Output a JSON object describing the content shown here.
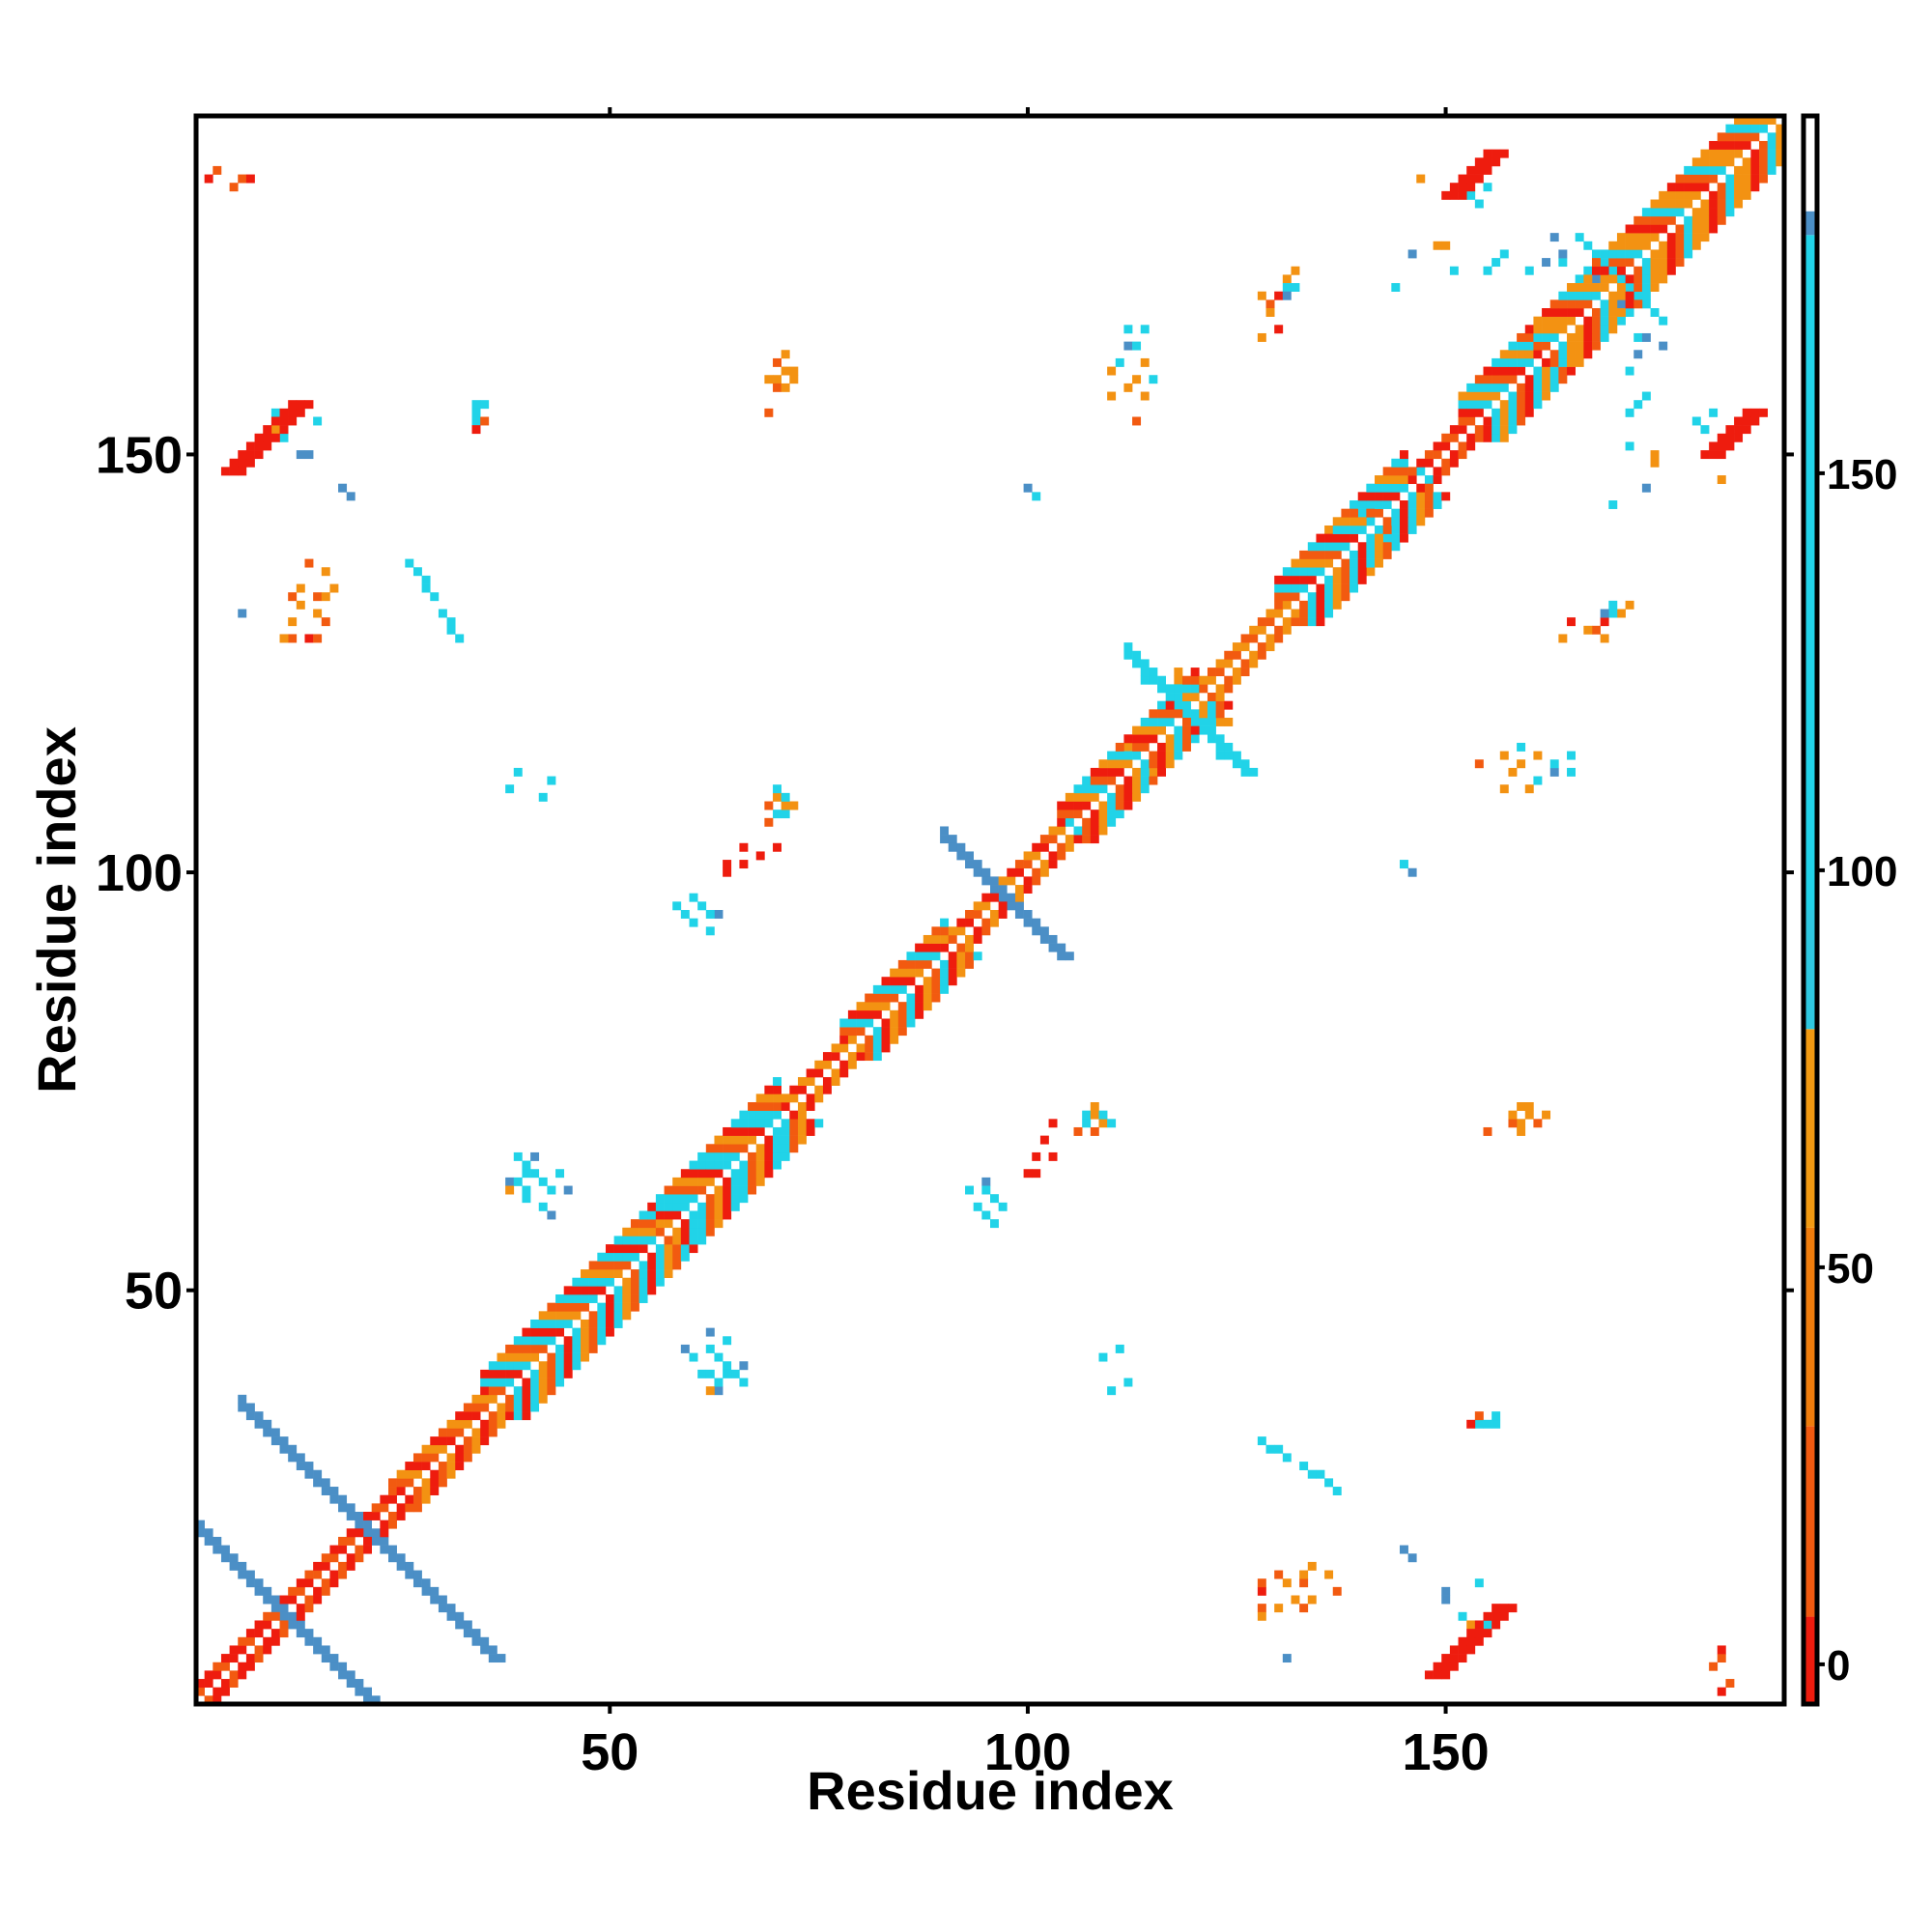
{
  "chart_data": {
    "type": "heatmap",
    "title": "",
    "xlabel": "Residue index",
    "ylabel": "Residue index",
    "xlim": [
      1,
      190
    ],
    "ylim": [
      1,
      190
    ],
    "x_ticks": [
      50,
      100,
      150
    ],
    "y_ticks": [
      50,
      100,
      150
    ],
    "grid": false,
    "colorbar": {
      "position": "right",
      "ticks": [
        0,
        50,
        100,
        150
      ],
      "range": [
        -5,
        195
      ],
      "bands": [
        {
          "from": -5,
          "to": 6,
          "color": "#ee1c0e"
        },
        {
          "from": 6,
          "to": 30,
          "color": "#f25a10"
        },
        {
          "from": 30,
          "to": 55,
          "color": "#f07d0c"
        },
        {
          "from": 55,
          "to": 80,
          "color": "#f29a12"
        },
        {
          "from": 80,
          "to": 95,
          "color": "#2fc8e0"
        },
        {
          "from": 95,
          "to": 180,
          "color": "#21d3e8"
        },
        {
          "from": 180,
          "to": 183,
          "color": "#4b8fc6"
        },
        {
          "from": 183,
          "to": 195,
          "color": "#ffffff"
        }
      ]
    },
    "palette": {
      "red": "#ee1c0e",
      "orange_red": "#f25a10",
      "orange": "#f39212",
      "cyan": "#21d3e8",
      "steel_blue": "#4b8fc6"
    },
    "diagonal_bands": [
      {
        "from": 1,
        "to": 12,
        "width": 2,
        "colors": [
          "red",
          "orange_red",
          "red"
        ]
      },
      {
        "from": 12,
        "to": 24,
        "width": 2,
        "colors": [
          "red",
          "orange_red"
        ]
      },
      {
        "from": 24,
        "to": 35,
        "width": 3,
        "colors": [
          "orange",
          "red",
          "orange_red"
        ]
      },
      {
        "from": 35,
        "to": 55,
        "width": 5,
        "colors": [
          "cyan",
          "orange",
          "orange_red",
          "cyan",
          "red"
        ]
      },
      {
        "from": 55,
        "to": 70,
        "width": 5,
        "colors": [
          "cyan",
          "orange_red",
          "orange",
          "red",
          "cyan"
        ]
      },
      {
        "from": 70,
        "to": 78,
        "width": 2,
        "colors": [
          "orange",
          "red"
        ]
      },
      {
        "from": 78,
        "to": 90,
        "width": 4,
        "colors": [
          "orange_red",
          "cyan",
          "red",
          "orange"
        ]
      },
      {
        "from": 90,
        "to": 104,
        "width": 2,
        "colors": [
          "red",
          "orange_red",
          "orange"
        ]
      },
      {
        "from": 104,
        "to": 120,
        "width": 4,
        "colors": [
          "orange",
          "cyan",
          "orange_red",
          "red"
        ]
      },
      {
        "from": 120,
        "to": 130,
        "width": 2,
        "colors": [
          "orange",
          "orange_red"
        ]
      },
      {
        "from": 130,
        "to": 145,
        "width": 5,
        "colors": [
          "cyan",
          "orange",
          "orange_red",
          "cyan",
          "red"
        ]
      },
      {
        "from": 145,
        "to": 152,
        "width": 2,
        "colors": [
          "red",
          "orange_red"
        ]
      },
      {
        "from": 152,
        "to": 160,
        "width": 5,
        "colors": [
          "cyan",
          "orange",
          "cyan",
          "orange_red",
          "red"
        ]
      },
      {
        "from": 160,
        "to": 190,
        "width": 5,
        "colors": [
          "orange",
          "red",
          "orange_red",
          "cyan",
          "orange"
        ]
      }
    ],
    "antidiagonal_strands": [
      {
        "center": [
          11,
          11
        ],
        "half_length": 10,
        "width": 2,
        "color": "steel_blue"
      },
      {
        "center": [
          21,
          21
        ],
        "half_length": 15,
        "width": 2,
        "color": "steel_blue"
      },
      {
        "center": [
          97,
          97
        ],
        "half_length": 7,
        "width": 2,
        "color": "steel_blue"
      },
      {
        "center": [
          119,
          119
        ],
        "half_length": 7,
        "width": 2,
        "color": "cyan"
      },
      {
        "center": [
          171,
          171
        ],
        "half_length": 5,
        "width": 1,
        "color": "cyan"
      }
    ],
    "parallel_strands": [
      {
        "x0": 4,
        "y0": 148,
        "length": 9,
        "width": 3,
        "color": "red"
      },
      {
        "x0": 148,
        "y0": 4,
        "length": 9,
        "width": 3,
        "color": "red"
      },
      {
        "x0": 150,
        "y0": 181,
        "length": 6,
        "width": 3,
        "color": "red"
      },
      {
        "x0": 181,
        "y0": 150,
        "length": 6,
        "width": 3,
        "color": "red"
      }
    ],
    "contacts": [
      [
        5,
        182,
        "orange_red"
      ],
      [
        6,
        183,
        "orange_red"
      ],
      [
        7,
        183,
        "red"
      ],
      [
        15,
        133,
        "orange_red"
      ],
      [
        16,
        133,
        "orange"
      ],
      [
        17,
        134,
        "orange"
      ],
      [
        15,
        131,
        "orange"
      ],
      [
        16,
        130,
        "orange_red"
      ],
      [
        14,
        128,
        "red"
      ],
      [
        15,
        128,
        "orange_red"
      ],
      [
        16,
        136,
        "orange"
      ],
      [
        6,
        131,
        "steel_blue"
      ],
      [
        26,
        137,
        "cyan"
      ],
      [
        27,
        136,
        "cyan"
      ],
      [
        28,
        134,
        "cyan"
      ],
      [
        29,
        133,
        "cyan"
      ],
      [
        30,
        131,
        "cyan"
      ],
      [
        31,
        130,
        "cyan"
      ],
      [
        32,
        128,
        "cyan"
      ],
      [
        19,
        145,
        "steel_blue"
      ],
      [
        18,
        146,
        "steel_blue"
      ],
      [
        15,
        154,
        "cyan"
      ],
      [
        13,
        150,
        "steel_blue"
      ],
      [
        34,
        156,
        "cyan"
      ],
      [
        34,
        154,
        "cyan"
      ],
      [
        34,
        153,
        "red"
      ],
      [
        70,
        159,
        "orange"
      ],
      [
        70,
        158,
        "orange_red"
      ],
      [
        71,
        158,
        "orange"
      ],
      [
        72,
        159,
        "orange"
      ],
      [
        72,
        160,
        "orange"
      ],
      [
        69,
        155,
        "orange_red"
      ],
      [
        38,
        110,
        "cyan"
      ],
      [
        42,
        109,
        "cyan"
      ],
      [
        70,
        107,
        "cyan"
      ],
      [
        71,
        107,
        "cyan"
      ],
      [
        72,
        108,
        "orange"
      ],
      [
        70,
        109,
        "orange"
      ],
      [
        69,
        106,
        "orange_red"
      ],
      [
        66,
        103,
        "red"
      ],
      [
        66,
        101,
        "red"
      ],
      [
        70,
        103,
        "red"
      ],
      [
        58,
        96,
        "cyan"
      ],
      [
        59,
        95,
        "cyan"
      ],
      [
        60,
        94,
        "cyan"
      ],
      [
        62,
        93,
        "cyan"
      ],
      [
        63,
        95,
        "steel_blue"
      ],
      [
        39,
        66,
        "cyan"
      ],
      [
        40,
        65,
        "cyan"
      ],
      [
        41,
        64,
        "cyan"
      ],
      [
        42,
        63,
        "cyan"
      ],
      [
        43,
        62,
        "cyan"
      ],
      [
        41,
        66,
        "steel_blue"
      ],
      [
        38,
        63,
        "steel_blue"
      ],
      [
        45,
        62,
        "steel_blue"
      ],
      [
        59,
        43,
        "steel_blue"
      ],
      [
        60,
        42,
        "cyan"
      ],
      [
        62,
        43,
        "cyan"
      ],
      [
        63,
        42,
        "steel_blue"
      ],
      [
        64,
        44,
        "cyan"
      ],
      [
        61,
        40,
        "cyan"
      ],
      [
        62,
        40,
        "cyan"
      ],
      [
        64,
        40,
        "cyan"
      ],
      [
        62,
        38,
        "orange"
      ],
      [
        63,
        39,
        "cyan"
      ],
      [
        95,
        63,
        "steel_blue"
      ],
      [
        95,
        62,
        "cyan"
      ],
      [
        96,
        61,
        "cyan"
      ],
      [
        97,
        60,
        "cyan"
      ],
      [
        96,
        58,
        "cyan"
      ],
      [
        102,
        68,
        "red"
      ],
      [
        100,
        64,
        "red"
      ],
      [
        101,
        64,
        "red"
      ],
      [
        108,
        71,
        "orange"
      ],
      [
        109,
        71,
        "cyan"
      ],
      [
        110,
        70,
        "cyan"
      ],
      [
        108,
        69,
        "orange_red"
      ],
      [
        111,
        43,
        "cyan"
      ],
      [
        112,
        39,
        "cyan"
      ],
      [
        113,
        159,
        "orange"
      ],
      [
        114,
        157,
        "orange"
      ],
      [
        115,
        159,
        "cyan"
      ],
      [
        114,
        161,
        "orange"
      ],
      [
        113,
        154,
        "orange_red"
      ],
      [
        128,
        169,
        "orange"
      ],
      [
        129,
        168,
        "orange_red"
      ],
      [
        130,
        169,
        "red"
      ],
      [
        131,
        171,
        "orange"
      ],
      [
        132,
        170,
        "cyan"
      ],
      [
        128,
        164,
        "orange"
      ],
      [
        129,
        31,
        "cyan"
      ],
      [
        131,
        30,
        "cyan"
      ],
      [
        133,
        29,
        "cyan"
      ],
      [
        134,
        28,
        "steel_blue"
      ],
      [
        136,
        27,
        "steel_blue"
      ],
      [
        135,
        28,
        "cyan"
      ],
      [
        128,
        12,
        "orange_red"
      ],
      [
        130,
        12,
        "orange"
      ],
      [
        132,
        13,
        "orange"
      ],
      [
        133,
        12,
        "orange_red"
      ],
      [
        134,
        13,
        "orange"
      ],
      [
        137,
        14,
        "orange_red"
      ],
      [
        128,
        11,
        "orange"
      ],
      [
        131,
        6,
        "cyan"
      ],
      [
        146,
        18,
        "steel_blue"
      ],
      [
        150,
        14,
        "steel_blue"
      ],
      [
        152,
        11,
        "cyan"
      ],
      [
        153,
        10,
        "orange"
      ],
      [
        155,
        10,
        "cyan"
      ],
      [
        154,
        35,
        "orange_red"
      ],
      [
        155,
        34,
        "cyan"
      ],
      [
        156,
        35,
        "cyan"
      ],
      [
        160,
        71,
        "orange"
      ],
      [
        161,
        70,
        "orange_red"
      ],
      [
        159,
        69,
        "orange"
      ],
      [
        158,
        70,
        "orange_red"
      ],
      [
        162,
        71,
        "orange"
      ],
      [
        158,
        112,
        "orange"
      ],
      [
        160,
        110,
        "orange"
      ],
      [
        161,
        111,
        "cyan"
      ],
      [
        163,
        112,
        "steel_blue"
      ],
      [
        163,
        113,
        "cyan"
      ],
      [
        165,
        112,
        "cyan"
      ],
      [
        165,
        114,
        "cyan"
      ],
      [
        157,
        110,
        "orange"
      ],
      [
        165,
        130,
        "red"
      ],
      [
        167,
        129,
        "orange"
      ],
      [
        169,
        130,
        "steel_blue"
      ],
      [
        170,
        131,
        "cyan"
      ],
      [
        172,
        132,
        "orange"
      ],
      [
        169,
        131,
        "steel_blue"
      ],
      [
        160,
        172,
        "cyan"
      ],
      [
        162,
        173,
        "steel_blue"
      ],
      [
        164,
        173,
        "cyan"
      ],
      [
        166,
        171,
        "cyan"
      ],
      [
        171,
        168,
        "steel_blue"
      ],
      [
        172,
        167,
        "cyan"
      ],
      [
        174,
        164,
        "steel_blue"
      ],
      [
        176,
        163,
        "steel_blue"
      ],
      [
        155,
        172,
        "cyan"
      ],
      [
        156,
        173,
        "cyan"
      ],
      [
        157,
        174,
        "cyan"
      ],
      [
        146,
        174,
        "steel_blue"
      ],
      [
        150,
        175,
        "orange"
      ],
      [
        139,
        144,
        "cyan"
      ],
      [
        140,
        143,
        "cyan"
      ],
      [
        141,
        142,
        "cyan"
      ],
      [
        143,
        140,
        "cyan"
      ],
      [
        144,
        141,
        "cyan"
      ],
      [
        136,
        141,
        "orange"
      ],
      [
        145,
        101,
        "cyan"
      ],
      [
        146,
        100,
        "steel_blue"
      ],
      [
        148,
        147,
        "cyan"
      ],
      [
        170,
        144,
        "cyan"
      ],
      [
        175,
        149,
        "orange"
      ],
      [
        172,
        151,
        "cyan"
      ],
      [
        183,
        147,
        "orange"
      ],
      [
        181,
        153,
        "cyan"
      ],
      [
        182,
        155,
        "cyan"
      ],
      [
        180,
        154,
        "cyan"
      ],
      [
        184,
        3,
        "orange_red"
      ],
      [
        183,
        2,
        "red"
      ],
      [
        107,
        111,
        "cyan"
      ],
      [
        112,
        115,
        "orange"
      ],
      [
        118,
        123,
        "orange"
      ],
      [
        120,
        116,
        "cyan"
      ],
      [
        124,
        118,
        "orange"
      ],
      [
        123,
        114,
        "cyan"
      ]
    ]
  }
}
